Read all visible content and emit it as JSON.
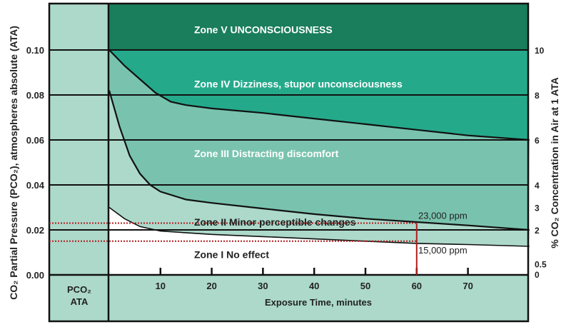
{
  "chart_data": {
    "type": "area",
    "xlabel": "Exposure Time, minutes",
    "ylabel_left": "CO₂ Partial Pressure (PCO₂), atmospheres absolute (ATA)",
    "ylabel_right": "% CO₂ Concentration in Air at 1 ATA",
    "left_column_label": [
      "PCO₂",
      "ATA"
    ],
    "xlim": [
      0,
      82
    ],
    "ylim": [
      0,
      0.12
    ],
    "x_ticks": [
      10,
      20,
      30,
      40,
      50,
      60,
      70
    ],
    "y_ticks_left": [
      {
        "value": 0.0,
        "label": "0.00"
      },
      {
        "value": 0.02,
        "label": "0.02"
      },
      {
        "value": 0.04,
        "label": "0.04"
      },
      {
        "value": 0.06,
        "label": "0.06"
      },
      {
        "value": 0.08,
        "label": "0.08"
      },
      {
        "value": 0.1,
        "label": "0.10"
      }
    ],
    "y_ticks_right": [
      {
        "value": 0.0,
        "label": "0"
      },
      {
        "value": 0.005,
        "label": "0.5"
      },
      {
        "value": 0.02,
        "label": "2"
      },
      {
        "value": 0.03,
        "label": "3"
      },
      {
        "value": 0.04,
        "label": "4"
      },
      {
        "value": 0.06,
        "label": "6"
      },
      {
        "value": 0.08,
        "label": "8"
      },
      {
        "value": 0.1,
        "label": "10"
      }
    ],
    "grid": true,
    "zones": [
      {
        "name": "Zone V UNCONSCIOUSNESS",
        "color": "#1a7d5c",
        "label_y": 0.109,
        "text_color": "#ffffff"
      },
      {
        "name": "Zone IV Dizziness, stupor unconsciousness",
        "color": "#25a98b",
        "label_y": 0.085,
        "text_color": "#ffffff"
      },
      {
        "name": "Zone III Distracting discomfort",
        "color": "#79c3ae",
        "label_y": 0.054,
        "text_color": "#ffffff"
      },
      {
        "name": "Zone II Minor perceptible changes",
        "color": "#acd9ca",
        "label_y": 0.0235,
        "text_color": "#222222"
      },
      {
        "name": "Zone I No effect",
        "color": "#ffffff",
        "label_y": 0.009,
        "text_color": "#222222"
      }
    ],
    "boundaries": [
      {
        "between": "Zone IV / Zone III",
        "points": [
          [
            0,
            0.1
          ],
          [
            3,
            0.093
          ],
          [
            6,
            0.087
          ],
          [
            9,
            0.081
          ],
          [
            12,
            0.077
          ],
          [
            15,
            0.0755
          ],
          [
            20,
            0.074
          ],
          [
            30,
            0.072
          ],
          [
            40,
            0.0695
          ],
          [
            50,
            0.067
          ],
          [
            60,
            0.0645
          ],
          [
            70,
            0.062
          ],
          [
            82,
            0.06
          ]
        ]
      },
      {
        "between": "Zone III / Zone II",
        "points": [
          [
            0,
            0.082
          ],
          [
            2,
            0.066
          ],
          [
            4,
            0.053
          ],
          [
            6,
            0.045
          ],
          [
            8,
            0.04
          ],
          [
            10,
            0.037
          ],
          [
            15,
            0.0335
          ],
          [
            20,
            0.032
          ],
          [
            30,
            0.0295
          ],
          [
            40,
            0.027
          ],
          [
            50,
            0.025
          ],
          [
            60,
            0.0235
          ],
          [
            70,
            0.022
          ],
          [
            82,
            0.02
          ]
        ]
      },
      {
        "between": "Zone II / Zone I",
        "points": [
          [
            0,
            0.03
          ],
          [
            3,
            0.025
          ],
          [
            6,
            0.0215
          ],
          [
            10,
            0.0195
          ],
          [
            20,
            0.018
          ],
          [
            30,
            0.017
          ],
          [
            40,
            0.016
          ],
          [
            50,
            0.015
          ],
          [
            60,
            0.014
          ],
          [
            70,
            0.0135
          ],
          [
            82,
            0.0127
          ]
        ]
      }
    ],
    "annotations": [
      {
        "text": "23,000 ppm",
        "y": 0.023,
        "x": 60
      },
      {
        "text": "15,000 ppm",
        "y": 0.015,
        "x": 60
      }
    ],
    "reference_color": "#b01e1e",
    "panel_color": "#acd9ca",
    "line_color": "#111111"
  }
}
